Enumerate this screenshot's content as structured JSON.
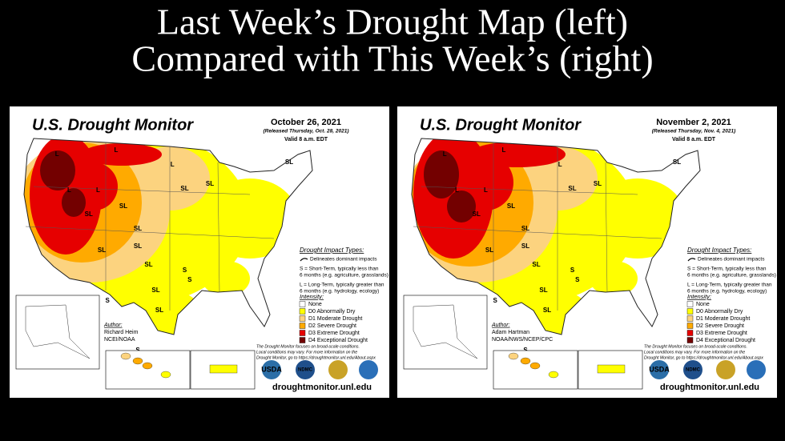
{
  "header": {
    "title_lines": [
      "Last Week’s Drought Map (left)",
      "Compared with This Week’s (right)"
    ]
  },
  "panels": [
    {
      "title": "U.S. Drought Monitor",
      "date": "October 26, 2021",
      "released": "(Released Thursday, Oct. 28, 2021)",
      "valid": "Valid 8 a.m. EDT",
      "impact_title": "Drought Impact Types:",
      "impact_lines": [
        "Delineates dominant impacts",
        "S = Short-Term, typically less than",
        "6 months (e.g. agriculture, grasslands)",
        "L = Long-Term, typically greater than",
        "6 months (e.g. hydrology, ecology)"
      ],
      "intensity_title": "Intensity:",
      "legend": [
        {
          "label": "None",
          "color": "#ffffff"
        },
        {
          "label": "D0 Abnormally Dry",
          "color": "#ffff00"
        },
        {
          "label": "D1 Moderate Drought",
          "color": "#fcd37f"
        },
        {
          "label": "D2 Severe Drought",
          "color": "#ffaa00"
        },
        {
          "label": "D3 Extreme Drought",
          "color": "#e60000"
        },
        {
          "label": "D4 Exceptional Drought",
          "color": "#730000"
        }
      ],
      "author_title": "Author:",
      "author_lines": [
        "Richard Heim",
        "NCEI/NOAA"
      ],
      "footnote_lines": [
        "The Drought Monitor focuses on broad-scale conditions.",
        "Local conditions may vary. For more information on the",
        "Drought Monitor, go to https://droughtmonitor.unl.edu/About.aspx"
      ],
      "logos": [
        "USDA",
        "NDMC"
      ],
      "url": "droughtmonitor.unl.edu",
      "map_labels": [
        "L",
        "L",
        "SL",
        "SL",
        "L",
        "SL",
        "SL",
        "SL",
        "SL",
        "SL",
        "S",
        "SL",
        "L",
        "S",
        "SL",
        "SL",
        "S",
        "L",
        "SL",
        "S"
      ]
    },
    {
      "title": "U.S. Drought Monitor",
      "date": "November 2, 2021",
      "released": "(Released Thursday, Nov. 4, 2021)",
      "valid": "Valid 8 a.m. EDT",
      "impact_title": "Drought Impact Types:",
      "impact_lines": [
        "Delineates dominant impacts",
        "S = Short-Term, typically less than",
        "6 months (e.g. agriculture, grasslands)",
        "L = Long-Term, typically greater than",
        "6 months (e.g. hydrology, ecology)"
      ],
      "intensity_title": "Intensity:",
      "legend": [
        {
          "label": "None",
          "color": "#ffffff"
        },
        {
          "label": "D0 Abnormally Dry",
          "color": "#ffff00"
        },
        {
          "label": "D1 Moderate Drought",
          "color": "#fcd37f"
        },
        {
          "label": "D2 Severe Drought",
          "color": "#ffaa00"
        },
        {
          "label": "D3 Extreme Drought",
          "color": "#e60000"
        },
        {
          "label": "D4 Exceptional Drought",
          "color": "#730000"
        }
      ],
      "author_title": "Author:",
      "author_lines": [
        "Adam Hartman",
        "NOAA/NWS/NCEP/CPC"
      ],
      "footnote_lines": [
        "The Drought Monitor focuses on broad-scale conditions.",
        "Local conditions may vary. For more information on the",
        "Drought Monitor, go to https://droughtmonitor.unl.edu/About.aspx"
      ],
      "logos": [
        "USDA",
        "NDMC"
      ],
      "url": "droughtmonitor.unl.edu",
      "map_labels": [
        "L",
        "L",
        "SL",
        "SL",
        "L",
        "SL",
        "SL",
        "SL",
        "SL",
        "SL",
        "S",
        "SL",
        "L",
        "S",
        "SL",
        "SL",
        "S",
        "L",
        "SL",
        "S"
      ]
    }
  ]
}
